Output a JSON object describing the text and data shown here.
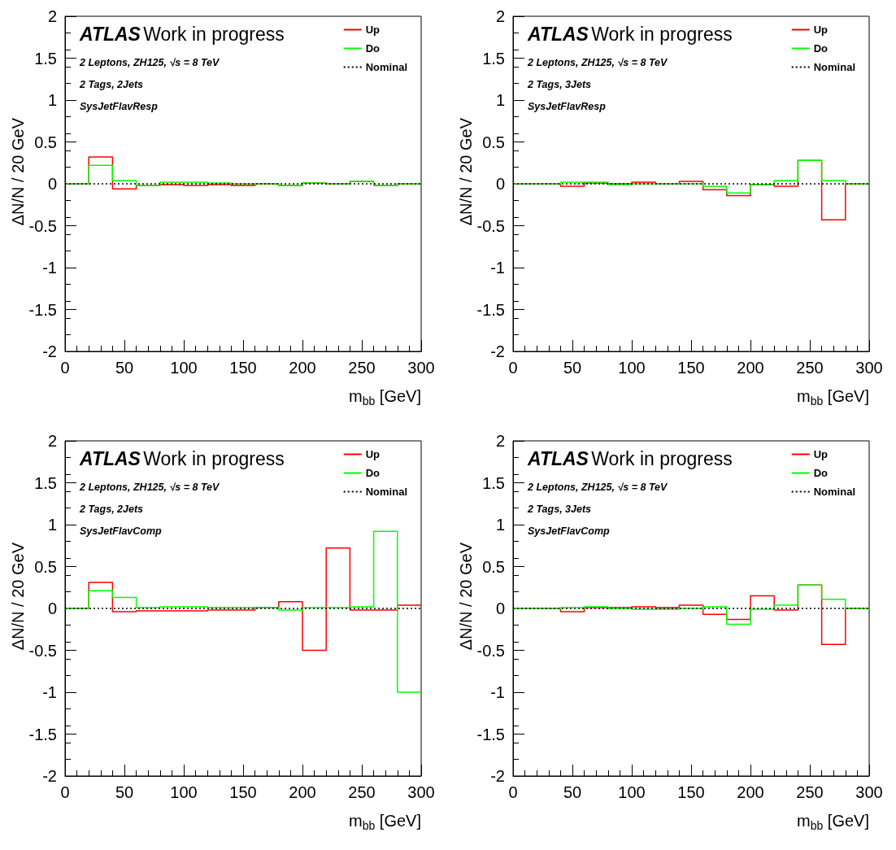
{
  "chart_data": [
    {
      "type": "histogram",
      "xlabel": "m$_{bb}$ [GeV]",
      "ylabel": "ΔN/N / 20 GeV",
      "annotations": [
        "ATLAS",
        "Work in progress",
        "2 Leptons, ZH125, √s = 8 TeV",
        "2 Tags, 2Jets",
        "SysJetFlavResp"
      ],
      "bins": [
        0,
        20,
        40,
        60,
        80,
        100,
        120,
        140,
        160,
        180,
        200,
        220,
        240,
        260,
        280,
        300
      ],
      "series": [
        {
          "name": "Up",
          "color": "#ff0000",
          "values": [
            0,
            0.32,
            -0.06,
            -0.02,
            -0.01,
            -0.02,
            -0.01,
            -0.02,
            0,
            -0.02,
            0.01,
            0,
            0.03,
            -0.02,
            0
          ]
        },
        {
          "name": "Do",
          "color": "#00ff00",
          "values": [
            0,
            0.22,
            0.04,
            -0.02,
            0.02,
            0.02,
            0.01,
            0,
            0,
            -0.02,
            0.01,
            0,
            0.03,
            -0.02,
            0
          ]
        }
      ],
      "ref_lines": [
        {
          "axis": "y",
          "value": 0,
          "label": "Nominal",
          "color": "#000000",
          "line_style": "dotted"
        }
      ],
      "xlim": [
        0,
        300
      ],
      "xticks": [
        0,
        50,
        100,
        150,
        200,
        250,
        300
      ],
      "ylim": [
        -2,
        2
      ],
      "yticks": [
        -2,
        -1.5,
        -1,
        -0.5,
        0,
        0.5,
        1,
        1.5,
        2
      ],
      "legend": "top right",
      "marker": "none",
      "grid": false
    },
    {
      "type": "histogram",
      "xlabel": "m$_{bb}$ [GeV]",
      "ylabel": "ΔN/N / 20 GeV",
      "annotations": [
        "ATLAS",
        "Work in progress",
        "2 Leptons, ZH125, √s = 8 TeV",
        "2 Tags, 3Jets",
        "SysJetFlavResp"
      ],
      "bins": [
        0,
        20,
        40,
        60,
        80,
        100,
        120,
        140,
        160,
        180,
        200,
        220,
        240,
        260,
        280,
        300
      ],
      "series": [
        {
          "name": "Up",
          "color": "#ff0000",
          "values": [
            0,
            0,
            -0.03,
            0.01,
            0,
            0.02,
            0,
            0.03,
            -0.07,
            -0.14,
            -0.01,
            -0.03,
            0.28,
            -0.43,
            0
          ]
        },
        {
          "name": "Do",
          "color": "#00ff00",
          "values": [
            0,
            0,
            0.02,
            0.02,
            -0.01,
            0,
            0,
            0,
            -0.03,
            -0.11,
            -0.01,
            0.04,
            0.28,
            0.04,
            0
          ]
        }
      ],
      "ref_lines": [
        {
          "axis": "y",
          "value": 0,
          "label": "Nominal",
          "color": "#000000",
          "line_style": "dotted"
        }
      ],
      "xlim": [
        0,
        300
      ],
      "xticks": [
        0,
        50,
        100,
        150,
        200,
        250,
        300
      ],
      "ylim": [
        -2,
        2
      ],
      "yticks": [
        -2,
        -1.5,
        -1,
        -0.5,
        0,
        0.5,
        1,
        1.5,
        2
      ],
      "legend": "top right",
      "marker": "none",
      "grid": false
    },
    {
      "type": "histogram",
      "xlabel": "m$_{bb}$ [GeV]",
      "ylabel": "ΔN/N / 20 GeV",
      "annotations": [
        "ATLAS",
        "Work in progress",
        "2 Leptons, ZH125, √s = 8 TeV",
        "2 Tags, 2Jets",
        "SysJetFlavComp"
      ],
      "bins": [
        0,
        20,
        40,
        60,
        80,
        100,
        120,
        140,
        160,
        180,
        200,
        220,
        240,
        260,
        280,
        300
      ],
      "series": [
        {
          "name": "Up",
          "color": "#ff0000",
          "values": [
            0,
            0.31,
            -0.04,
            -0.03,
            -0.03,
            -0.03,
            -0.02,
            -0.02,
            0.01,
            0.08,
            -0.5,
            0.72,
            -0.02,
            -0.02,
            0.04
          ]
        },
        {
          "name": "Do",
          "color": "#00ff00",
          "values": [
            0,
            0.21,
            0.13,
            0.01,
            0.02,
            0.02,
            0.01,
            0.01,
            0.01,
            -0.02,
            0.01,
            0.01,
            0.02,
            0.92,
            -1
          ]
        }
      ],
      "ref_lines": [
        {
          "axis": "y",
          "value": 0,
          "label": "Nominal",
          "color": "#000000",
          "line_style": "dotted"
        }
      ],
      "xlim": [
        0,
        300
      ],
      "xticks": [
        0,
        50,
        100,
        150,
        200,
        250,
        300
      ],
      "ylim": [
        -2,
        2
      ],
      "yticks": [
        -2,
        -1.5,
        -1,
        -0.5,
        0,
        0.5,
        1,
        1.5,
        2
      ],
      "legend": "top right",
      "marker": "none",
      "grid": false
    },
    {
      "type": "histogram",
      "xlabel": "m$_{bb}$ [GeV]",
      "ylabel": "ΔN/N / 20 GeV",
      "annotations": [
        "ATLAS",
        "Work in progress",
        "2 Leptons, ZH125, √s = 8 TeV",
        "2 Tags, 3Jets",
        "SysJetFlavComp"
      ],
      "bins": [
        0,
        20,
        40,
        60,
        80,
        100,
        120,
        140,
        160,
        180,
        200,
        220,
        240,
        260,
        280,
        300
      ],
      "series": [
        {
          "name": "Up",
          "color": "#ff0000",
          "values": [
            0,
            0,
            -0.04,
            0.01,
            0.01,
            0.02,
            0.01,
            0.04,
            -0.07,
            -0.13,
            0.15,
            -0.02,
            0.28,
            -0.43,
            0
          ]
        },
        {
          "name": "Do",
          "color": "#00ff00",
          "values": [
            0,
            0,
            0.01,
            0.02,
            0,
            -0.01,
            -0.01,
            0,
            0.02,
            -0.19,
            -0.01,
            0.04,
            0.28,
            0.11,
            0
          ]
        }
      ],
      "ref_lines": [
        {
          "axis": "y",
          "value": 0,
          "label": "Nominal",
          "color": "#000000",
          "line_style": "dotted"
        }
      ],
      "xlim": [
        0,
        300
      ],
      "xticks": [
        0,
        50,
        100,
        150,
        200,
        250,
        300
      ],
      "ylim": [
        -2,
        2
      ],
      "yticks": [
        -2,
        -1.5,
        -1,
        -0.5,
        0,
        0.5,
        1,
        1.5,
        2
      ],
      "legend": "top right",
      "marker": "none",
      "grid": false
    }
  ]
}
